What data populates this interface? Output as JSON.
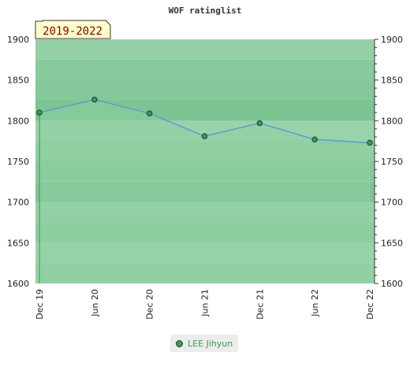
{
  "chart_data": {
    "type": "area",
    "title": "WOF ratinglist",
    "period_badge": "2019-2022",
    "x_tick_labels": [
      "Dec 19",
      "Jun 20",
      "Dec 20",
      "Jun 21",
      "Dec 21",
      "Jun 22",
      "Dec 22"
    ],
    "y_ticks": [
      1600,
      1650,
      1700,
      1750,
      1800,
      1850,
      1900
    ],
    "ylim": [
      1600,
      1900
    ],
    "series": [
      {
        "name": "LEE Jihyun",
        "values": [
          1810,
          1826,
          1809,
          1781,
          1797,
          1777,
          1773
        ]
      }
    ],
    "grid": true,
    "legend_position": "bottom-center",
    "colors": {
      "line": "#5b9bd5",
      "marker": "#3a9a58",
      "area_fill": "#8fcfa0",
      "band_light": "#e9f5ec",
      "band_dark": "#7cc492"
    }
  }
}
